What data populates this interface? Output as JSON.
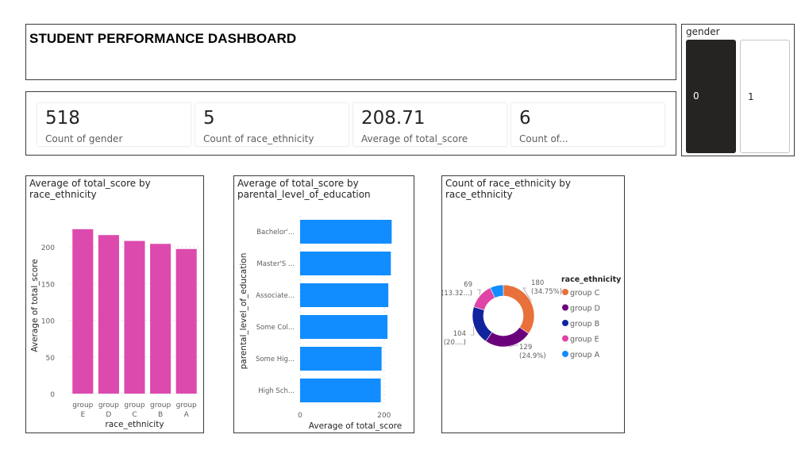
{
  "title": "STUDENT PERFORMANCE DASHBOARD",
  "kpis": [
    {
      "value": "518",
      "label": "Count of gender"
    },
    {
      "value": "5",
      "label": "Count of race_ethnicity"
    },
    {
      "value": "208.71",
      "label": "Average of total_score"
    },
    {
      "value": "6",
      "label": "Count of..."
    }
  ],
  "slicer": {
    "header": "gender",
    "options": [
      "0",
      "1"
    ],
    "selected": "0"
  },
  "colors": {
    "bar_pink": "#dd4aae",
    "bar_blue": "#118dff",
    "group_c": "#e8703a",
    "group_d": "#6b007b",
    "group_b": "#12239e",
    "group_e": "#e044a7",
    "group_a": "#118dff"
  },
  "chart_data": [
    {
      "type": "bar",
      "title": "Average of total_score by race_ethnicity",
      "categories": [
        "group E",
        "group D",
        "group C",
        "group B",
        "group A"
      ],
      "values": [
        224,
        216,
        208,
        204,
        197
      ],
      "xlabel": "race_ethnicity",
      "ylabel": "Average of total_score",
      "ylim": [
        0,
        240
      ],
      "yticks": [
        0,
        50,
        100,
        150,
        200
      ],
      "grid": true
    },
    {
      "type": "bar",
      "orientation": "horizontal",
      "title": "Average of total_score by parental_level_of_education",
      "categories": [
        "Bachelor'...",
        "Master'S ...",
        "Associate...",
        "Some Col...",
        "Some Hig...",
        "High Sch..."
      ],
      "values": [
        218,
        216,
        210,
        208,
        194,
        192
      ],
      "xlabel": "Average of total_score",
      "ylabel": "parental_level_of_education",
      "xlim": [
        0,
        240
      ],
      "xticks": [
        0,
        200
      ],
      "grid": true
    },
    {
      "type": "pie",
      "donut": true,
      "title": "Count of race_ethnicity by race_ethnicity",
      "legend_title": "race_ethnicity",
      "legend_position": "right",
      "slices": [
        {
          "label": "group C",
          "value": 180,
          "count_label": "180",
          "pct_label": "(34.75%)"
        },
        {
          "label": "group D",
          "value": 129,
          "count_label": "129",
          "pct_label": "(24.9%)"
        },
        {
          "label": "group B",
          "value": 104,
          "count_label": "104",
          "pct_label": "(20....)"
        },
        {
          "label": "group E",
          "value": 69,
          "count_label": "69",
          "pct_label": "(13.32...)"
        },
        {
          "label": "group A",
          "value": 36,
          "count_label": "",
          "pct_label": ""
        }
      ]
    }
  ]
}
